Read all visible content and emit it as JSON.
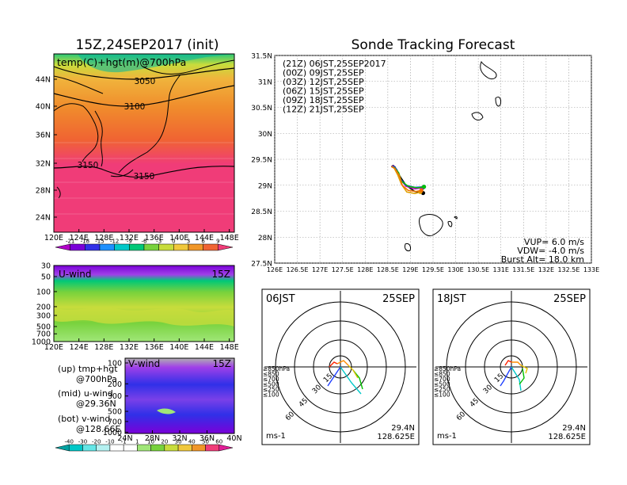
{
  "map_panel": {
    "title": "15Z,24SEP2017 (init)",
    "label": "temp(C)+hgt(m)@700hPa",
    "contour_labels": [
      "3050",
      "3100",
      "3150",
      "3150"
    ],
    "lat_ticks": [
      "44N",
      "40N",
      "36N",
      "32N",
      "28N",
      "24N"
    ],
    "lon_ticks": [
      "120E",
      "124E",
      "128E",
      "132E",
      "136E",
      "140E",
      "144E",
      "148E"
    ],
    "colorbar_labels": [
      "-21",
      "-18",
      "-15",
      "-12",
      "-9",
      "-6",
      "-3",
      "0",
      "3",
      "6",
      "9"
    ],
    "colorbar_colors": [
      "#b000c8",
      "#7a00d8",
      "#3030e8",
      "#1e90ff",
      "#00c8c8",
      "#00c878",
      "#78d23c",
      "#c8dc3c",
      "#f0c83c",
      "#f09628",
      "#f06432",
      "#f03c78"
    ]
  },
  "uwind_panel": {
    "label": "U-wind",
    "time": "15Z",
    "p_ticks": [
      "30",
      "50",
      "100",
      "200",
      "300",
      "500",
      "700",
      "1000"
    ],
    "lon_ticks": [
      "120E",
      "124E",
      "128E",
      "132E",
      "136E",
      "140E",
      "144E",
      "148E"
    ]
  },
  "vwind_panel": {
    "label": "V-wind",
    "time": "15Z",
    "p_ticks": [
      "100",
      "200",
      "300",
      "500",
      "700",
      "1000"
    ],
    "lat_ticks": [
      "24N",
      "28N",
      "32N",
      "36N",
      "40N"
    ],
    "colorbar_labels": [
      "-40",
      "-30",
      "-20",
      "-10",
      "-1",
      "1",
      "10",
      "20",
      "30",
      "40",
      "50",
      "60"
    ],
    "colorbar_colors": [
      "#00a0a0",
      "#00c8c8",
      "#64e6e6",
      "#b4f0f0",
      "#ffffff",
      "#ffffff",
      "#a0e678",
      "#78d23c",
      "#c8dc3c",
      "#f0c83c",
      "#f09628",
      "#f03c78",
      "#e01e96"
    ]
  },
  "legend_text": {
    "up_line1": "(up) tmp+hgt",
    "up_line2": "@700hPa",
    "mid_line1": "(mid) u-wind",
    "mid_line2": "@29.36N",
    "bot_line1": "(bot) v-wind",
    "bot_line2": "@128.66E"
  },
  "chart_data": {
    "type": "line",
    "title": "Sonde Tracking Forecast",
    "xlabel": "",
    "ylabel": "",
    "xlim": [
      126,
      133
    ],
    "ylim": [
      27.5,
      31.5
    ],
    "x_ticks": [
      "126E",
      "126.5E",
      "127E",
      "127.5E",
      "128E",
      "128.5E",
      "129E",
      "129.5E",
      "130E",
      "130.5E",
      "131E",
      "131.5E",
      "132E",
      "132.5E",
      "133E"
    ],
    "y_ticks": [
      "27.5N",
      "28N",
      "28.5N",
      "29N",
      "29.5N",
      "30N",
      "30.5N",
      "31N",
      "31.5N"
    ],
    "legend_position": "top-left",
    "series": [
      {
        "name": "(21Z)  06JST,25SEP2017",
        "color": "#000000",
        "lon": [
          128.58,
          128.62,
          128.66,
          128.75,
          128.9,
          129.1,
          129.28
        ],
        "lat": [
          29.36,
          29.38,
          29.35,
          29.2,
          29.0,
          28.88,
          28.85
        ]
      },
      {
        "name": "(00Z)  09JST,25SEP",
        "color": "#c000c0",
        "lon": [
          128.58,
          128.63,
          128.68,
          128.76,
          128.9,
          129.1,
          129.27
        ],
        "lat": [
          29.36,
          29.37,
          29.32,
          29.14,
          28.98,
          28.93,
          28.95
        ]
      },
      {
        "name": "(03Z)  12JST,25SEP",
        "color": "#2040ff",
        "lon": [
          128.58,
          128.64,
          128.7,
          128.78,
          128.9,
          129.1,
          129.3
        ],
        "lat": [
          29.36,
          29.36,
          29.3,
          29.12,
          29.0,
          28.96,
          28.97
        ]
      },
      {
        "name": "(06Z)  15JST,25SEP",
        "color": "#00c000",
        "lon": [
          128.58,
          128.65,
          128.74,
          128.8,
          128.95,
          129.15,
          129.3
        ],
        "lat": [
          29.36,
          29.34,
          29.24,
          29.08,
          28.98,
          28.95,
          28.97
        ]
      },
      {
        "name": "(09Z)  18JST,25SEP",
        "color": "#e0a000",
        "lon": [
          128.58,
          128.64,
          128.72,
          128.8,
          128.92,
          129.1,
          129.22
        ],
        "lat": [
          29.36,
          29.33,
          29.2,
          29.02,
          28.87,
          28.84,
          28.87
        ]
      },
      {
        "name": "(12Z)  21JST,25SEP",
        "color": "#f07000",
        "lon": [
          128.58,
          128.66,
          128.76,
          128.82,
          128.95,
          129.12,
          129.24
        ],
        "lat": [
          29.36,
          29.32,
          29.18,
          29.0,
          28.9,
          28.88,
          28.9
        ]
      }
    ],
    "annotations": [
      "VUP=  6.0  m/s",
      "VDW= -4.0  m/s",
      "Burst Alt=  18.0  km"
    ]
  },
  "hodo_left": {
    "time": "06JST",
    "date": "25SEP",
    "rings": [
      "15",
      "30",
      "45",
      "60"
    ],
    "pressure_legend": [
      "≥850hPa",
      "≤850",
      "≤700",
      "≤500",
      "≤250",
      "≤100"
    ],
    "pressure_colors": [
      "#ff2000",
      "#ff8c00",
      "#e0c000",
      "#00c000",
      "#00c8c8",
      "#2040ff"
    ],
    "units": "ms-1",
    "lat": "29.4N",
    "lon": "128.625E"
  },
  "hodo_right": {
    "time": "18JST",
    "date": "25SEP",
    "rings": [
      "15",
      "30",
      "45",
      "60"
    ],
    "pressure_legend": [
      "≥850hPa",
      "≤850",
      "≤700",
      "≤500",
      "≤250",
      "≤100"
    ],
    "pressure_colors": [
      "#ff2000",
      "#ff8c00",
      "#e0c000",
      "#00c000",
      "#00c8c8",
      "#2040ff"
    ],
    "units": "ms-1",
    "lat": "29.4N",
    "lon": "128.625E"
  }
}
